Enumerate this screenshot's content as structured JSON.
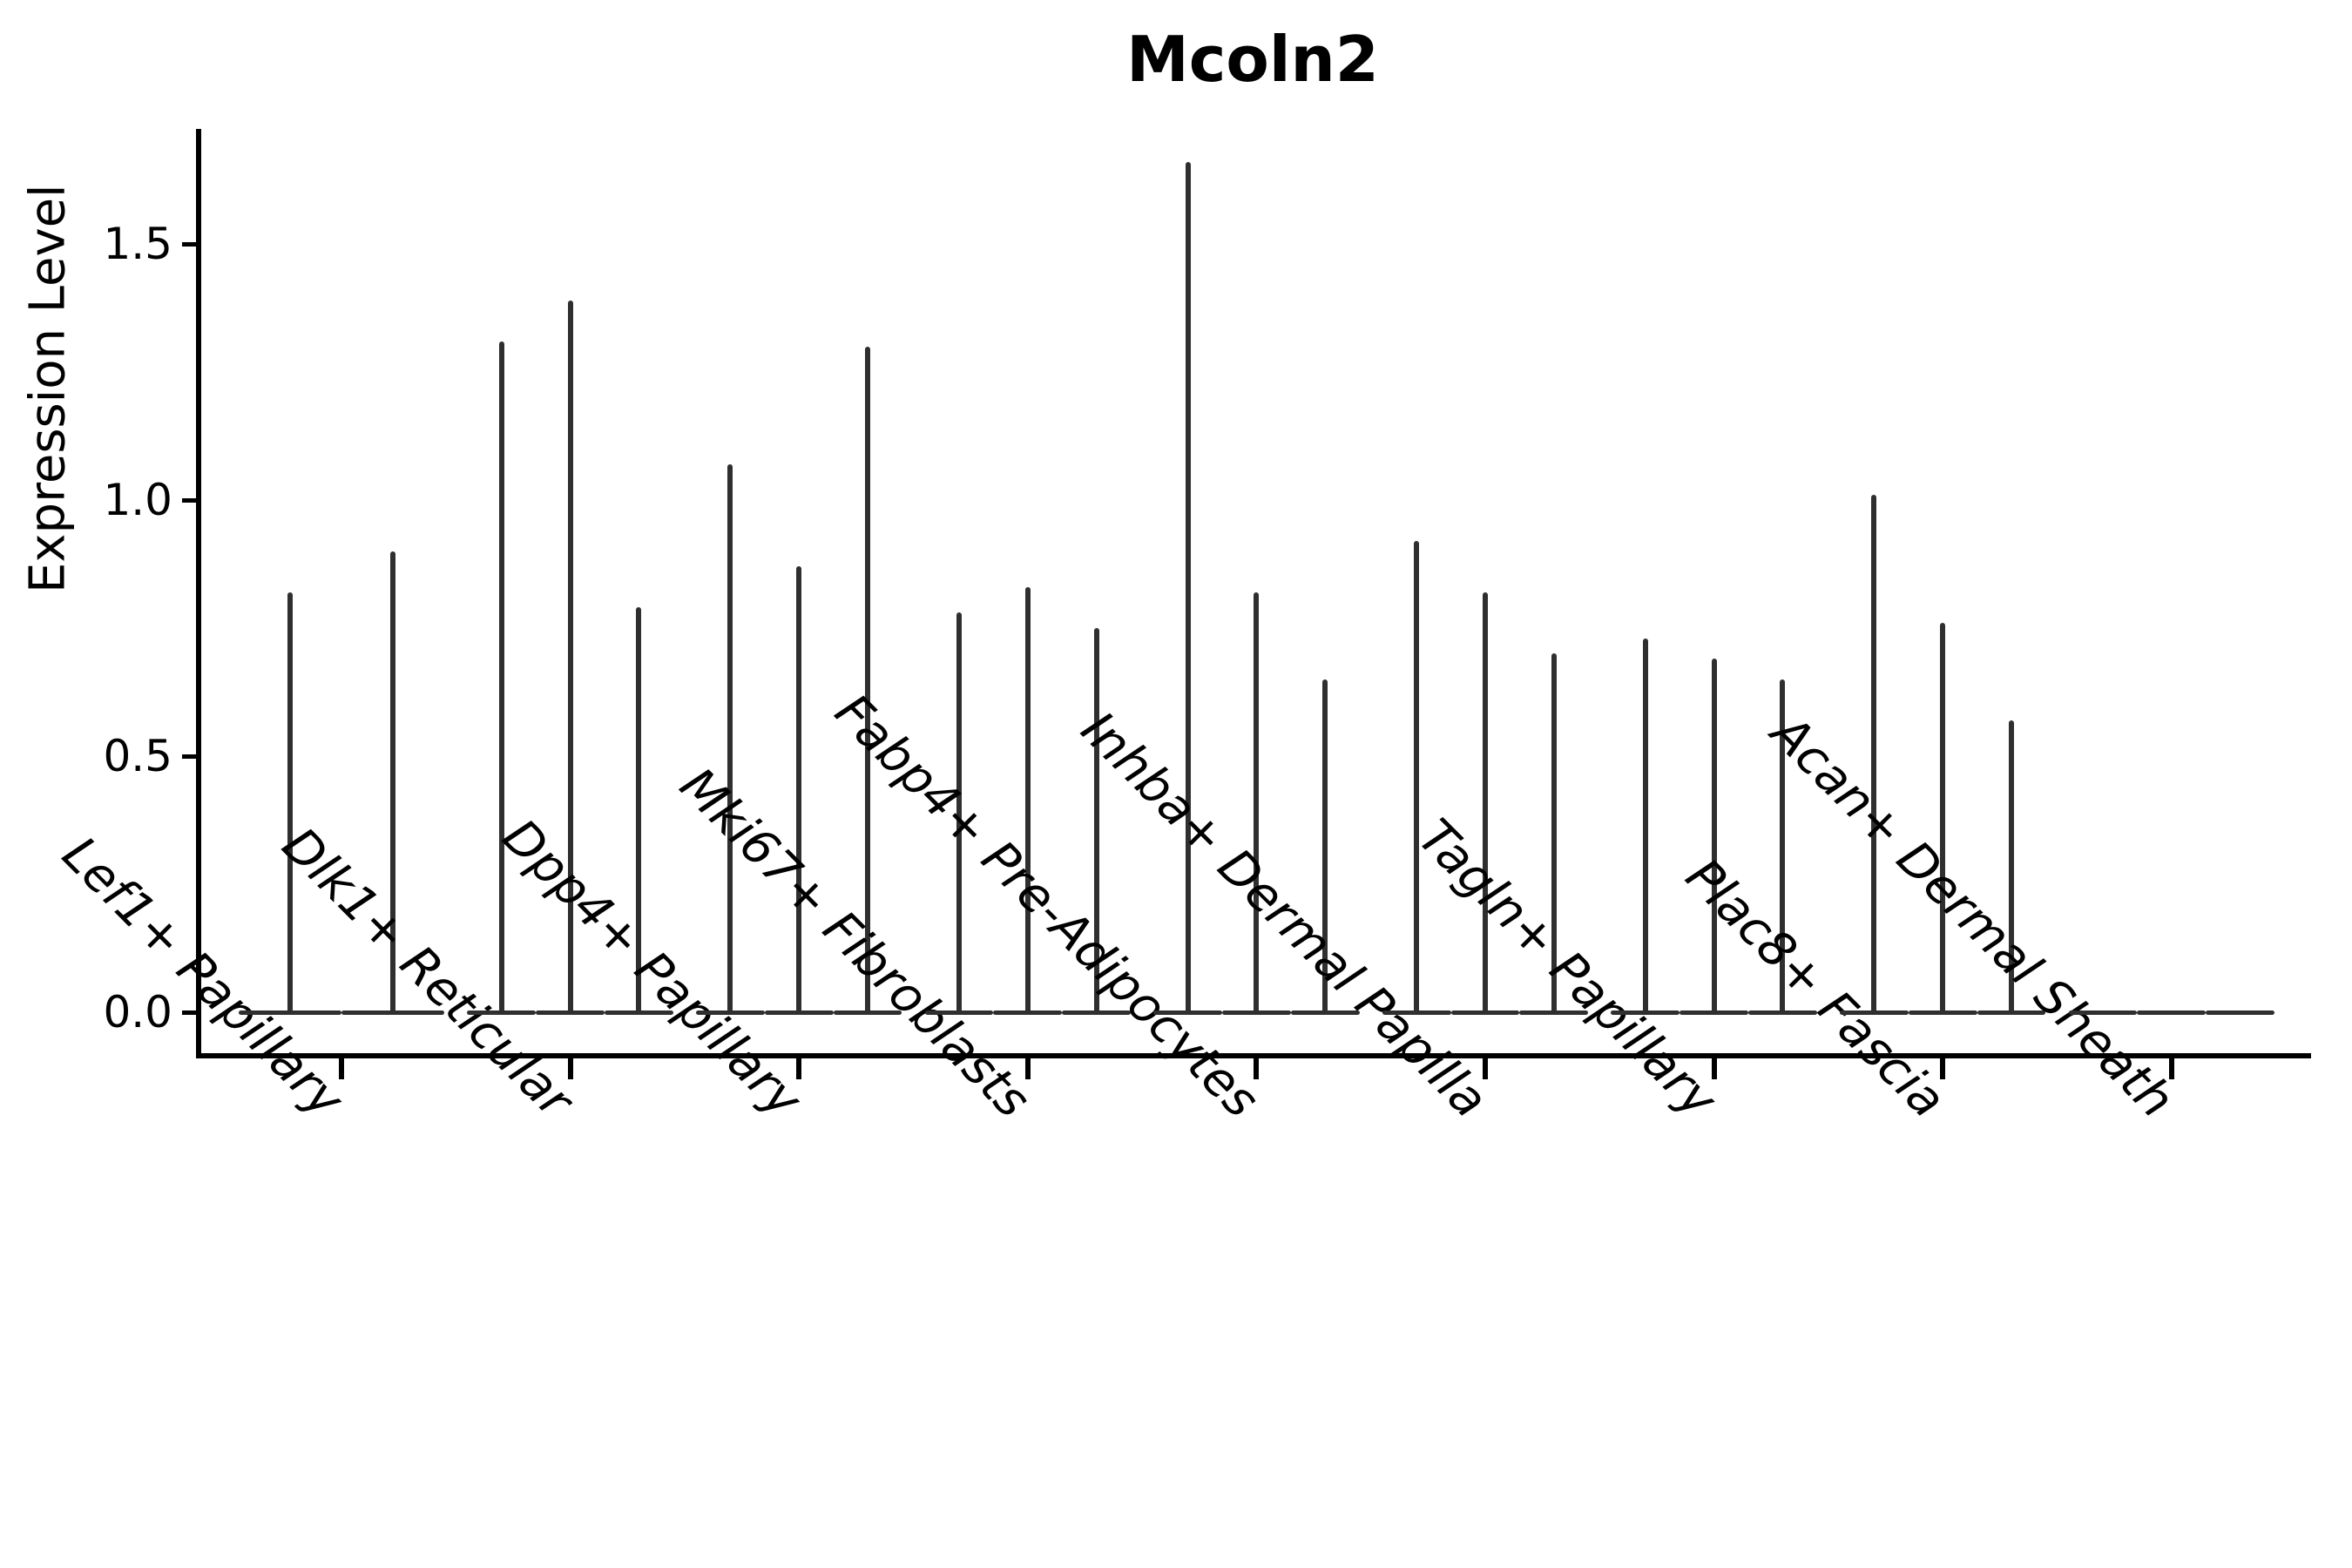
{
  "chart_data": {
    "type": "violin",
    "title": "Mcoln2",
    "ylabel": "Expression Level",
    "xlabel": "",
    "grid": false,
    "legend": null,
    "ylim": [
      0.0,
      1.72
    ],
    "yticks": [
      {
        "value": 0.0,
        "label": "0.0"
      },
      {
        "value": 0.5,
        "label": "0.5"
      },
      {
        "value": 1.0,
        "label": "1.0"
      },
      {
        "value": 1.5,
        "label": "1.5"
      }
    ],
    "categories": [
      "Lef1+ Papillary",
      "Dlk1+ Reticular",
      "Dpp4+ Papillary",
      "Mki67+ Fibroblasts",
      "Fabp4+ Pre-Adipocytes",
      "Inhba+ Dermal Papilla",
      "Tagln+ Papillary",
      "Plac8+ Fascia",
      "Acan+ Dermal Sheath"
    ],
    "groups": [
      {
        "category": "Lef1+ Papillary",
        "violin_max_values": [
          0.82,
          0.9
        ]
      },
      {
        "category": "Dlk1+ Reticular",
        "violin_max_values": [
          1.31,
          1.39,
          0.79
        ]
      },
      {
        "category": "Dpp4+ Papillary",
        "violin_max_values": [
          1.07,
          0.87,
          1.3
        ]
      },
      {
        "category": "Mki67+ Fibroblasts",
        "violin_max_values": [
          0.78,
          0.83,
          0.75
        ]
      },
      {
        "category": "Fabp4+ Pre-Adipocytes",
        "violin_max_values": [
          1.66,
          0.82,
          0.65
        ]
      },
      {
        "category": "Inhba+ Dermal Papilla",
        "violin_max_values": [
          0.92,
          0.82,
          0.7
        ]
      },
      {
        "category": "Tagln+ Papillary",
        "violin_max_values": [
          0.73,
          0.69,
          0.65
        ]
      },
      {
        "category": "Plac8+ Fascia",
        "violin_max_values": [
          1.01,
          0.76,
          0.57
        ]
      },
      {
        "category": "Acan+ Dermal Sheath",
        "violin_max_values": [
          0,
          0,
          0
        ]
      }
    ]
  },
  "colors": {
    "violin": "#2f2f2f",
    "axis": "#000000",
    "background": "#ffffff"
  }
}
